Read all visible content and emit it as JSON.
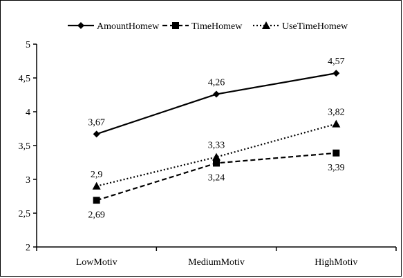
{
  "chart_data": {
    "type": "line",
    "categories": [
      "LowMotiv",
      "MediumMotiv",
      "HighMotiv"
    ],
    "y_ticks": [
      "2",
      "2,5",
      "3",
      "3,5",
      "4",
      "4,5",
      "5"
    ],
    "ylim": [
      2,
      5
    ],
    "grid": false,
    "legend_position": "top",
    "series": [
      {
        "name": "AmountHomew",
        "values": [
          3.67,
          4.26,
          4.57
        ],
        "labels": [
          "3,67",
          "4,26",
          "4,57"
        ],
        "line_style": "solid",
        "marker": "diamond",
        "label_position": "above"
      },
      {
        "name": "TimeHomew",
        "values": [
          2.69,
          3.24,
          3.39
        ],
        "labels": [
          "2,69",
          "3,24",
          "3,39"
        ],
        "line_style": "dashed",
        "marker": "square",
        "label_position": "below"
      },
      {
        "name": "UseTimeHomew",
        "values": [
          2.9,
          3.33,
          3.82
        ],
        "labels": [
          "2,9",
          "3,33",
          "3,82"
        ],
        "line_style": "dotted",
        "marker": "triangle",
        "label_position": "above"
      }
    ],
    "colors": {
      "line": "#000000",
      "background": "#ffffff"
    }
  }
}
